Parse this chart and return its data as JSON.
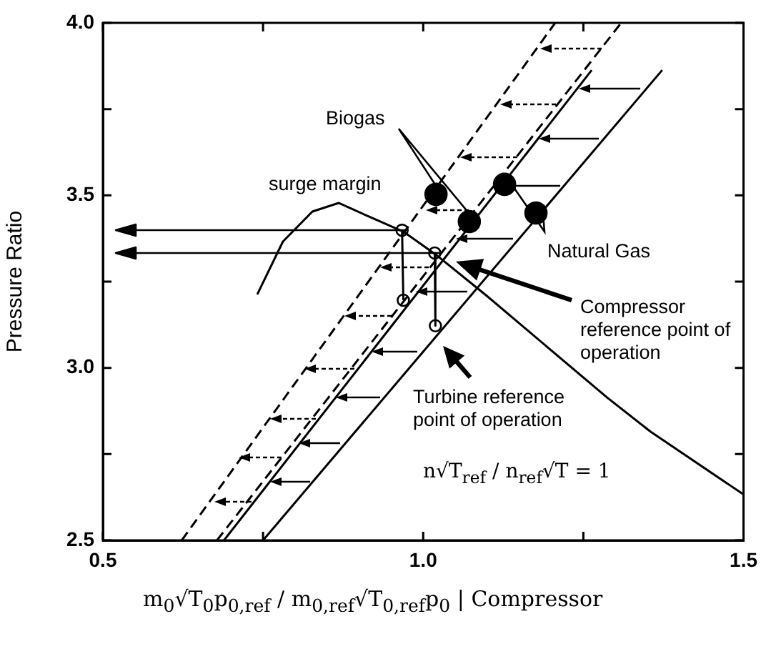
{
  "chart_data": {
    "type": "line",
    "ylabel": "Pressure Ratio",
    "xlabel": "m$_{0}$√T$_{0}$p$_{0,ref}$ / m$_{0,ref}$√T$_{0,ref}$p$_{0}$ | Compressor",
    "xlim": [
      0.5,
      1.5
    ],
    "ylim": [
      2.5,
      4.0
    ],
    "xticks": [
      {
        "value": 0.5,
        "label": "0.5"
      },
      {
        "value": 0.75,
        "label": null
      },
      {
        "value": 1.0,
        "label": "1.0"
      },
      {
        "value": 1.25,
        "label": null
      },
      {
        "value": 1.5,
        "label": "1.5"
      }
    ],
    "yticks": [
      {
        "value": 2.5,
        "label": "2.5"
      },
      {
        "value": 2.75,
        "label": null
      },
      {
        "value": 3.0,
        "label": "3.0"
      },
      {
        "value": 3.25,
        "label": null
      },
      {
        "value": 3.5,
        "label": "3.5"
      },
      {
        "value": 3.75,
        "label": null
      },
      {
        "value": 4.0,
        "label": "4.0"
      }
    ],
    "grid": false,
    "legend": false,
    "marker": "none",
    "series": [
      {
        "type": "line",
        "color": "#000000",
        "line_style": "dashed",
        "x": [
          0.623,
          1.206
        ],
        "values": [
          2.5,
          4.0
        ]
      },
      {
        "type": "line",
        "color": "#000000",
        "line_style": "dashed",
        "x": [
          0.678,
          1.309
        ],
        "values": [
          2.5,
          4.0
        ]
      },
      {
        "type": "line",
        "color": "#000000",
        "line_style": "solid",
        "x": [
          0.689,
          1.263
        ],
        "values": [
          2.5,
          3.863
        ]
      },
      {
        "type": "line",
        "color": "#000000",
        "line_style": "solid",
        "x": [
          0.75,
          1.373
        ],
        "values": [
          2.5,
          3.863
        ]
      },
      {
        "type": "line",
        "color": "#000000",
        "line_style": "solid",
        "x": [
          0.741,
          0.781,
          0.827,
          0.868,
          0.917,
          0.969,
          1.022,
          1.099,
          1.287,
          1.355,
          1.5
        ],
        "values": [
          3.213,
          3.366,
          3.453,
          3.478,
          3.437,
          3.395,
          3.325,
          3.209,
          2.914,
          2.815,
          2.633
        ]
      },
      {
        "type": "line",
        "color": "#000000",
        "line_style": "solid",
        "x": [
          0.967,
          0.969
        ],
        "values": [
          3.399,
          3.196
        ]
      },
      {
        "type": "line",
        "color": "#000000",
        "line_style": "solid",
        "x": [
          1.018,
          1.019
        ],
        "values": [
          3.333,
          3.122
        ]
      },
      {
        "type": "scatter",
        "color": "#000000",
        "marker": "circle",
        "x": [
          0.967,
          1.018,
          0.969,
          1.019
        ],
        "values": [
          3.399,
          3.333,
          3.196,
          3.122
        ]
      },
      {
        "type": "scatter",
        "color": "#000000",
        "marker": "circle",
        "x": [
          1.02,
          1.072,
          1.127,
          1.176
        ],
        "values": [
          3.503,
          3.424,
          3.532,
          3.449
        ]
      }
    ],
    "annotations": [
      "Biogas",
      "surge margin",
      "Natural Gas",
      "Compressor reference point of operation",
      "Turbine reference point of operation",
      "n√T$_{ref}$ / n$_{ref}$√T = 1"
    ]
  }
}
